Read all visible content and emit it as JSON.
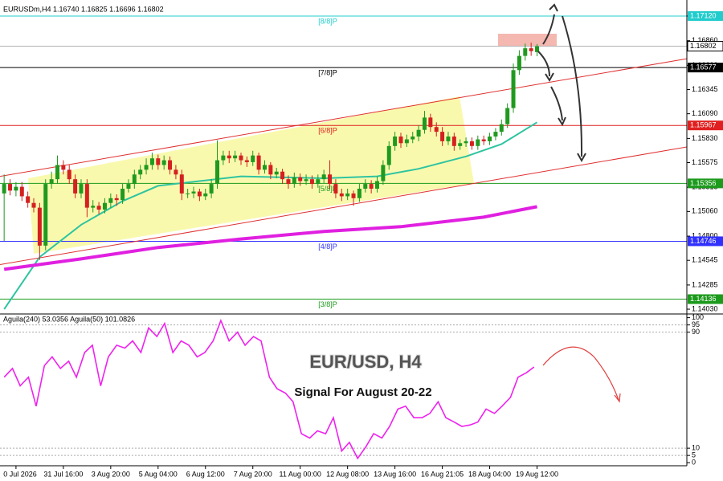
{
  "chart_data": {
    "type": "candlestick",
    "title": "EURUSDm,H4  1.16740 1.16825 1.16696 1.16802",
    "xlim": [
      -0.7,
      115.3
    ],
    "ylim": [
      1.13988,
      1.17289
    ],
    "xticks": [
      {
        "value": 2,
        "label": "0 Jul 2026"
      },
      {
        "value": 10,
        "label": "31 Jul 16:00"
      },
      {
        "value": 18,
        "label": "3 Aug 20:00"
      },
      {
        "value": 26,
        "label": "5 Aug 04:00"
      },
      {
        "value": 34,
        "label": "6 Aug 12:00"
      },
      {
        "value": 42,
        "label": "7 Aug 20:00"
      },
      {
        "value": 50,
        "label": "11 Aug 00:00"
      },
      {
        "value": 58,
        "label": "12 Aug 08:00"
      },
      {
        "value": 66,
        "label": "13 Aug 16:00"
      },
      {
        "value": 74,
        "label": "16 Aug 21:05"
      },
      {
        "value": 82,
        "label": "18 Aug 04:00"
      },
      {
        "value": 90,
        "label": "19 Aug 12:00"
      }
    ],
    "yticks": [
      {
        "value": 1.1712,
        "label": "1.17120"
      },
      {
        "value": 1.1686,
        "label": "1.16860"
      },
      {
        "value": 1.166,
        "label": "1.16600"
      },
      {
        "value": 1.16345,
        "label": "1.16345"
      },
      {
        "value": 1.1609,
        "label": "1.16090"
      },
      {
        "value": 1.1583,
        "label": "1.15830"
      },
      {
        "value": 1.15575,
        "label": "1.15575"
      },
      {
        "value": 1.15315,
        "label": "1.15315"
      },
      {
        "value": 1.1506,
        "label": "1.15060"
      },
      {
        "value": 1.148,
        "label": "1.14800"
      },
      {
        "value": 1.14545,
        "label": "1.14545"
      },
      {
        "value": 1.14285,
        "label": "1.14285"
      },
      {
        "value": 1.1403,
        "label": "1.14030"
      }
    ],
    "up_color": "#1f9a1f",
    "down_color": "#d42020",
    "candles": [
      [
        1.1525,
        1.1545,
        1.1475,
        1.1535
      ],
      [
        1.1535,
        1.154,
        1.1523,
        1.1528
      ],
      [
        1.1528,
        1.1537,
        1.1522,
        1.1532
      ],
      [
        1.1532,
        1.1537,
        1.1517,
        1.1522
      ],
      [
        1.1522,
        1.1527,
        1.151,
        1.1515
      ],
      [
        1.1515,
        1.152,
        1.1505,
        1.151
      ],
      [
        1.151,
        1.1515,
        1.1455,
        1.147
      ],
      [
        1.147,
        1.154,
        1.1465,
        1.1535
      ],
      [
        1.1535,
        1.1548,
        1.153,
        1.154
      ],
      [
        1.154,
        1.1565,
        1.1535,
        1.1555
      ],
      [
        1.1555,
        1.156,
        1.1545,
        1.155
      ],
      [
        1.155,
        1.1555,
        1.1535,
        1.154
      ],
      [
        1.154,
        1.1545,
        1.152,
        1.1525
      ],
      [
        1.1525,
        1.154,
        1.152,
        1.1535
      ],
      [
        1.1535,
        1.154,
        1.15,
        1.151
      ],
      [
        1.151,
        1.1518,
        1.1505,
        1.1512
      ],
      [
        1.1512,
        1.1516,
        1.1503,
        1.1508
      ],
      [
        1.1508,
        1.152,
        1.1504,
        1.1515
      ],
      [
        1.1515,
        1.1525,
        1.151,
        1.152
      ],
      [
        1.152,
        1.1524,
        1.1512,
        1.1518
      ],
      [
        1.1518,
        1.1535,
        1.1514,
        1.153
      ],
      [
        1.153,
        1.154,
        1.1526,
        1.1535
      ],
      [
        1.1535,
        1.155,
        1.153,
        1.1545
      ],
      [
        1.1545,
        1.1555,
        1.154,
        1.155
      ],
      [
        1.155,
        1.1562,
        1.1545,
        1.1555
      ],
      [
        1.1555,
        1.1568,
        1.155,
        1.1562
      ],
      [
        1.1562,
        1.1566,
        1.155,
        1.1555
      ],
      [
        1.1555,
        1.1565,
        1.155,
        1.156
      ],
      [
        1.156,
        1.1564,
        1.1545,
        1.155
      ],
      [
        1.155,
        1.1555,
        1.154,
        1.1545
      ],
      [
        1.1545,
        1.155,
        1.1518,
        1.1525
      ],
      [
        1.1525,
        1.153,
        1.152,
        1.1525
      ],
      [
        1.1525,
        1.1532,
        1.152,
        1.1527
      ],
      [
        1.1527,
        1.153,
        1.1517,
        1.1522
      ],
      [
        1.1522,
        1.153,
        1.1518,
        1.1525
      ],
      [
        1.1525,
        1.154,
        1.152,
        1.1535
      ],
      [
        1.1535,
        1.1581,
        1.153,
        1.156
      ],
      [
        1.156,
        1.157,
        1.1555,
        1.1565
      ],
      [
        1.1565,
        1.157,
        1.1557,
        1.1562
      ],
      [
        1.1562,
        1.157,
        1.1558,
        1.1565
      ],
      [
        1.1565,
        1.1568,
        1.1555,
        1.156
      ],
      [
        1.156,
        1.1564,
        1.1553,
        1.1558
      ],
      [
        1.1558,
        1.157,
        1.1554,
        1.1565
      ],
      [
        1.1565,
        1.1568,
        1.1545,
        1.155
      ],
      [
        1.155,
        1.156,
        1.1546,
        1.1555
      ],
      [
        1.1555,
        1.1558,
        1.154,
        1.1545
      ],
      [
        1.1545,
        1.1552,
        1.1541,
        1.1548
      ],
      [
        1.1548,
        1.1551,
        1.1535,
        1.154
      ],
      [
        1.154,
        1.1544,
        1.153,
        1.1535
      ],
      [
        1.1535,
        1.1547,
        1.1531,
        1.1542
      ],
      [
        1.1542,
        1.1546,
        1.1533,
        1.1538
      ],
      [
        1.1538,
        1.1545,
        1.1534,
        1.154
      ],
      [
        1.154,
        1.1544,
        1.153,
        1.1535
      ],
      [
        1.1535,
        1.1545,
        1.1531,
        1.154
      ],
      [
        1.154,
        1.155,
        1.1536,
        1.1545
      ],
      [
        1.1545,
        1.156,
        1.153,
        1.1535
      ],
      [
        1.1535,
        1.154,
        1.152,
        1.1525
      ],
      [
        1.1525,
        1.153,
        1.1517,
        1.1522
      ],
      [
        1.1522,
        1.153,
        1.1518,
        1.1525
      ],
      [
        1.1525,
        1.1528,
        1.1512,
        1.152
      ],
      [
        1.152,
        1.1535,
        1.1516,
        1.153
      ],
      [
        1.153,
        1.154,
        1.1526,
        1.1535
      ],
      [
        1.1535,
        1.1539,
        1.1525,
        1.153
      ],
      [
        1.153,
        1.1543,
        1.1526,
        1.1538
      ],
      [
        1.1538,
        1.156,
        1.1534,
        1.1555
      ],
      [
        1.1555,
        1.158,
        1.155,
        1.1575
      ],
      [
        1.1575,
        1.159,
        1.157,
        1.1585
      ],
      [
        1.1585,
        1.1589,
        1.1573,
        1.1578
      ],
      [
        1.1578,
        1.1587,
        1.1574,
        1.1582
      ],
      [
        1.1582,
        1.159,
        1.1578,
        1.1585
      ],
      [
        1.1585,
        1.1597,
        1.158,
        1.1592
      ],
      [
        1.1592,
        1.1612,
        1.1588,
        1.1605
      ],
      [
        1.1605,
        1.1609,
        1.159,
        1.1595
      ],
      [
        1.1595,
        1.16,
        1.1585,
        1.159
      ],
      [
        1.159,
        1.1595,
        1.1575,
        1.158
      ],
      [
        1.158,
        1.159,
        1.1576,
        1.1585
      ],
      [
        1.1585,
        1.1589,
        1.157,
        1.1575
      ],
      [
        1.1575,
        1.1582,
        1.1571,
        1.1578
      ],
      [
        1.1578,
        1.1584,
        1.1574,
        1.158
      ],
      [
        1.158,
        1.1584,
        1.1571,
        1.1575
      ],
      [
        1.1575,
        1.1586,
        1.1571,
        1.1582
      ],
      [
        1.1582,
        1.1586,
        1.1576,
        1.158
      ],
      [
        1.158,
        1.1589,
        1.1576,
        1.1585
      ],
      [
        1.1585,
        1.1594,
        1.1581,
        1.159
      ],
      [
        1.159,
        1.1603,
        1.1586,
        1.1598
      ],
      [
        1.1598,
        1.162,
        1.1594,
        1.1615
      ],
      [
        1.1615,
        1.1662,
        1.161,
        1.1655
      ],
      [
        1.1655,
        1.1676,
        1.165,
        1.167
      ],
      [
        1.167,
        1.1683,
        1.1665,
        1.1678
      ],
      [
        1.1678,
        1.1684,
        1.167,
        1.1675
      ],
      [
        1.1674,
        1.16825,
        1.16696,
        1.16802
      ]
    ],
    "series": [
      {
        "color": "#2ec4a0",
        "x": [
          0,
          6,
          13,
          20,
          26,
          40,
          54,
          63,
          70,
          78,
          84,
          90
        ],
        "values": [
          1.1403,
          1.1458,
          1.1492,
          1.1517,
          1.1533,
          1.1543,
          1.1541,
          1.1543,
          1.1551,
          1.1564,
          1.1577,
          1.16
        ]
      },
      {
        "color": "#e020e0",
        "x": [
          0,
          13,
          26,
          40,
          54,
          67,
          81,
          90
        ],
        "values": [
          1.1445,
          1.1456,
          1.1468,
          1.1477,
          1.1485,
          1.149,
          1.15,
          1.1511
        ]
      }
    ],
    "trendlines": [
      {
        "color": "#e03030",
        "x": [
          -0.7,
          115.3
        ],
        "y": [
          1.1543,
          1.1667
        ]
      },
      {
        "color": "#e03030",
        "x": [
          -0.7,
          115.3
        ],
        "y": [
          1.145,
          1.1574
        ]
      }
    ],
    "levels": [
      {
        "label": "[8/8]P",
        "color": "#22cccc",
        "price": {
          "value": 1.1712,
          "label": "1.17120"
        }
      },
      {
        "label": "[7/8]P",
        "color": "#000000",
        "price": {
          "value": 1.16577,
          "label": "1.16577"
        }
      },
      {
        "label": "[6/8]P",
        "color": "#e02020",
        "price": {
          "value": 1.15967,
          "label": "1.15967"
        }
      },
      {
        "label": "[5/8]P",
        "color": "#1c9a1c",
        "price": {
          "value": 1.15356,
          "label": "1.15356"
        }
      },
      {
        "label": "[4/8]P",
        "color": "#3030ff",
        "price": {
          "value": 1.14746,
          "label": "1.14746"
        }
      },
      {
        "label": "[3/8]P",
        "color": "#1c9a1c",
        "price": {
          "value": 1.14136,
          "label": "1.14136"
        }
      }
    ],
    "current_price": {
      "value": 1.16802,
      "label": "1.16802"
    },
    "annotations": [
      "EUR/USD, H4",
      "Signal For August 20-22"
    ],
    "indicator": {
      "label": "Aguila(240) 53.0356  Aguila(50) 101.0826",
      "color": "#ee22ee",
      "ylim": [
        -1,
        102
      ],
      "yticks": [
        100,
        95,
        90,
        10,
        5,
        0
      ],
      "dotted_levels": [
        95,
        90,
        10,
        5
      ],
      "x": [
        0,
        1.4,
        2.7,
        4.1,
        5.4,
        6.8,
        8.1,
        9.5,
        10.9,
        12.2,
        13.6,
        14.9,
        16.3,
        17.6,
        19,
        20.4,
        21.7,
        23.1,
        24.4,
        25.8,
        27.1,
        28.5,
        29.9,
        31.2,
        32.6,
        33.9,
        35.3,
        36.6,
        38,
        39.4,
        40.7,
        42.1,
        43.4,
        44.8,
        46.1,
        47.5,
        48.8,
        50.2,
        51.6,
        52.9,
        54.3,
        55.6,
        57,
        58.3,
        59.7,
        61.1,
        62.4,
        63.8,
        65.1,
        66.5,
        67.8,
        69.2,
        70.6,
        71.9,
        73.3,
        74.6,
        76,
        77.3,
        78.7,
        80,
        81.4,
        82.8,
        84.1,
        85.5,
        86.8,
        88.2,
        89.5
      ],
      "values": [
        59,
        65,
        53,
        59,
        39,
        67,
        73,
        65,
        70,
        59,
        76,
        81,
        53,
        73,
        81,
        79,
        84,
        76,
        93,
        87,
        96,
        76,
        84,
        81,
        73,
        76,
        84,
        98,
        84,
        90,
        81,
        87,
        84,
        59,
        51,
        48,
        42,
        20,
        17,
        22,
        20,
        31,
        8,
        14,
        3,
        11,
        20,
        17,
        25,
        37,
        39,
        31,
        31,
        34,
        42,
        31,
        28,
        25,
        26,
        28,
        37,
        34,
        39,
        45,
        59,
        62,
        66
      ]
    }
  }
}
